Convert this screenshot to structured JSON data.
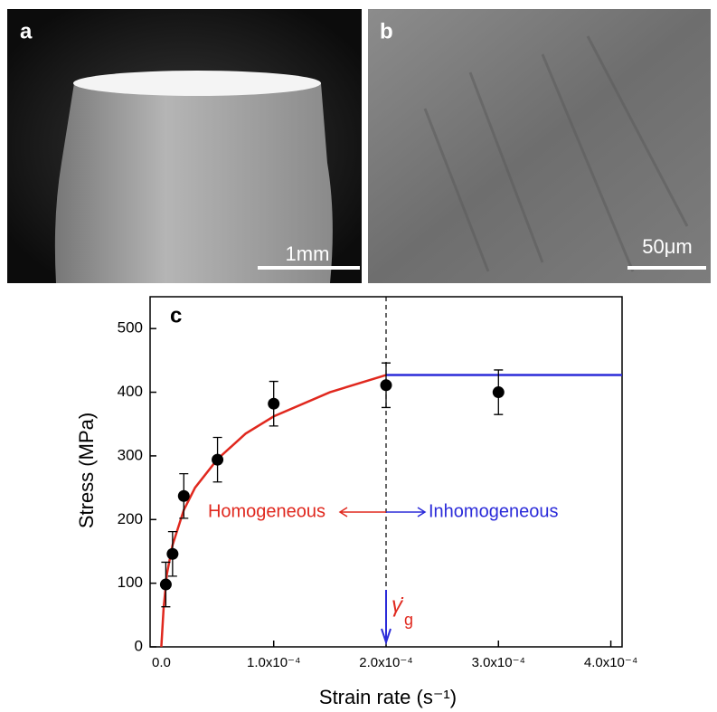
{
  "panels": [
    {
      "label": "a",
      "scale_bar": "1mm"
    },
    {
      "label": "b",
      "scale_bar": "50μm"
    }
  ],
  "chart_data": {
    "type": "scatter",
    "panel_label": "c",
    "xlabel": "Strain rate (s⁻¹)",
    "ylabel": "Stress (MPa)",
    "xlim": [
      -1e-05,
      0.00041
    ],
    "ylim": [
      0,
      550
    ],
    "xticks": [
      {
        "value": 0,
        "label": "0.0"
      },
      {
        "value": 0.0001,
        "label": "1.0x10⁻⁴"
      },
      {
        "value": 0.0002,
        "label": "2.0x10⁻⁴"
      },
      {
        "value": 0.0003,
        "label": "3.0x10⁻⁴"
      },
      {
        "value": 0.0004,
        "label": "4.0x10⁻⁴"
      }
    ],
    "yticks": [
      0,
      100,
      200,
      300,
      400,
      500
    ],
    "x": [
      4e-06,
      1e-05,
      2e-05,
      5e-05,
      0.0001,
      0.0002,
      0.0003
    ],
    "values": [
      98,
      146,
      237,
      294,
      382,
      411,
      400
    ],
    "errors": [
      35,
      35,
      35,
      35,
      35,
      35,
      35
    ],
    "color": "#000000",
    "fit": {
      "x": [
        0,
        2e-06,
        5e-06,
        1e-05,
        2e-05,
        3e-05,
        5e-05,
        7.5e-05,
        0.0001,
        0.00015,
        0.0002
      ],
      "values": [
        0,
        60,
        115,
        160,
        215,
        250,
        295,
        335,
        362,
        400,
        427
      ],
      "color": "#e0281e"
    },
    "plateau": {
      "x": [
        0.0002,
        0.00041
      ],
      "values": [
        427,
        427
      ],
      "color": "#2b2bd9"
    },
    "threshold_x": 0.0002,
    "left_region": "Homogeneous",
    "right_region": "Inhomogeneous",
    "rate_symbol": "γ̇",
    "rate_subscript": "g"
  }
}
